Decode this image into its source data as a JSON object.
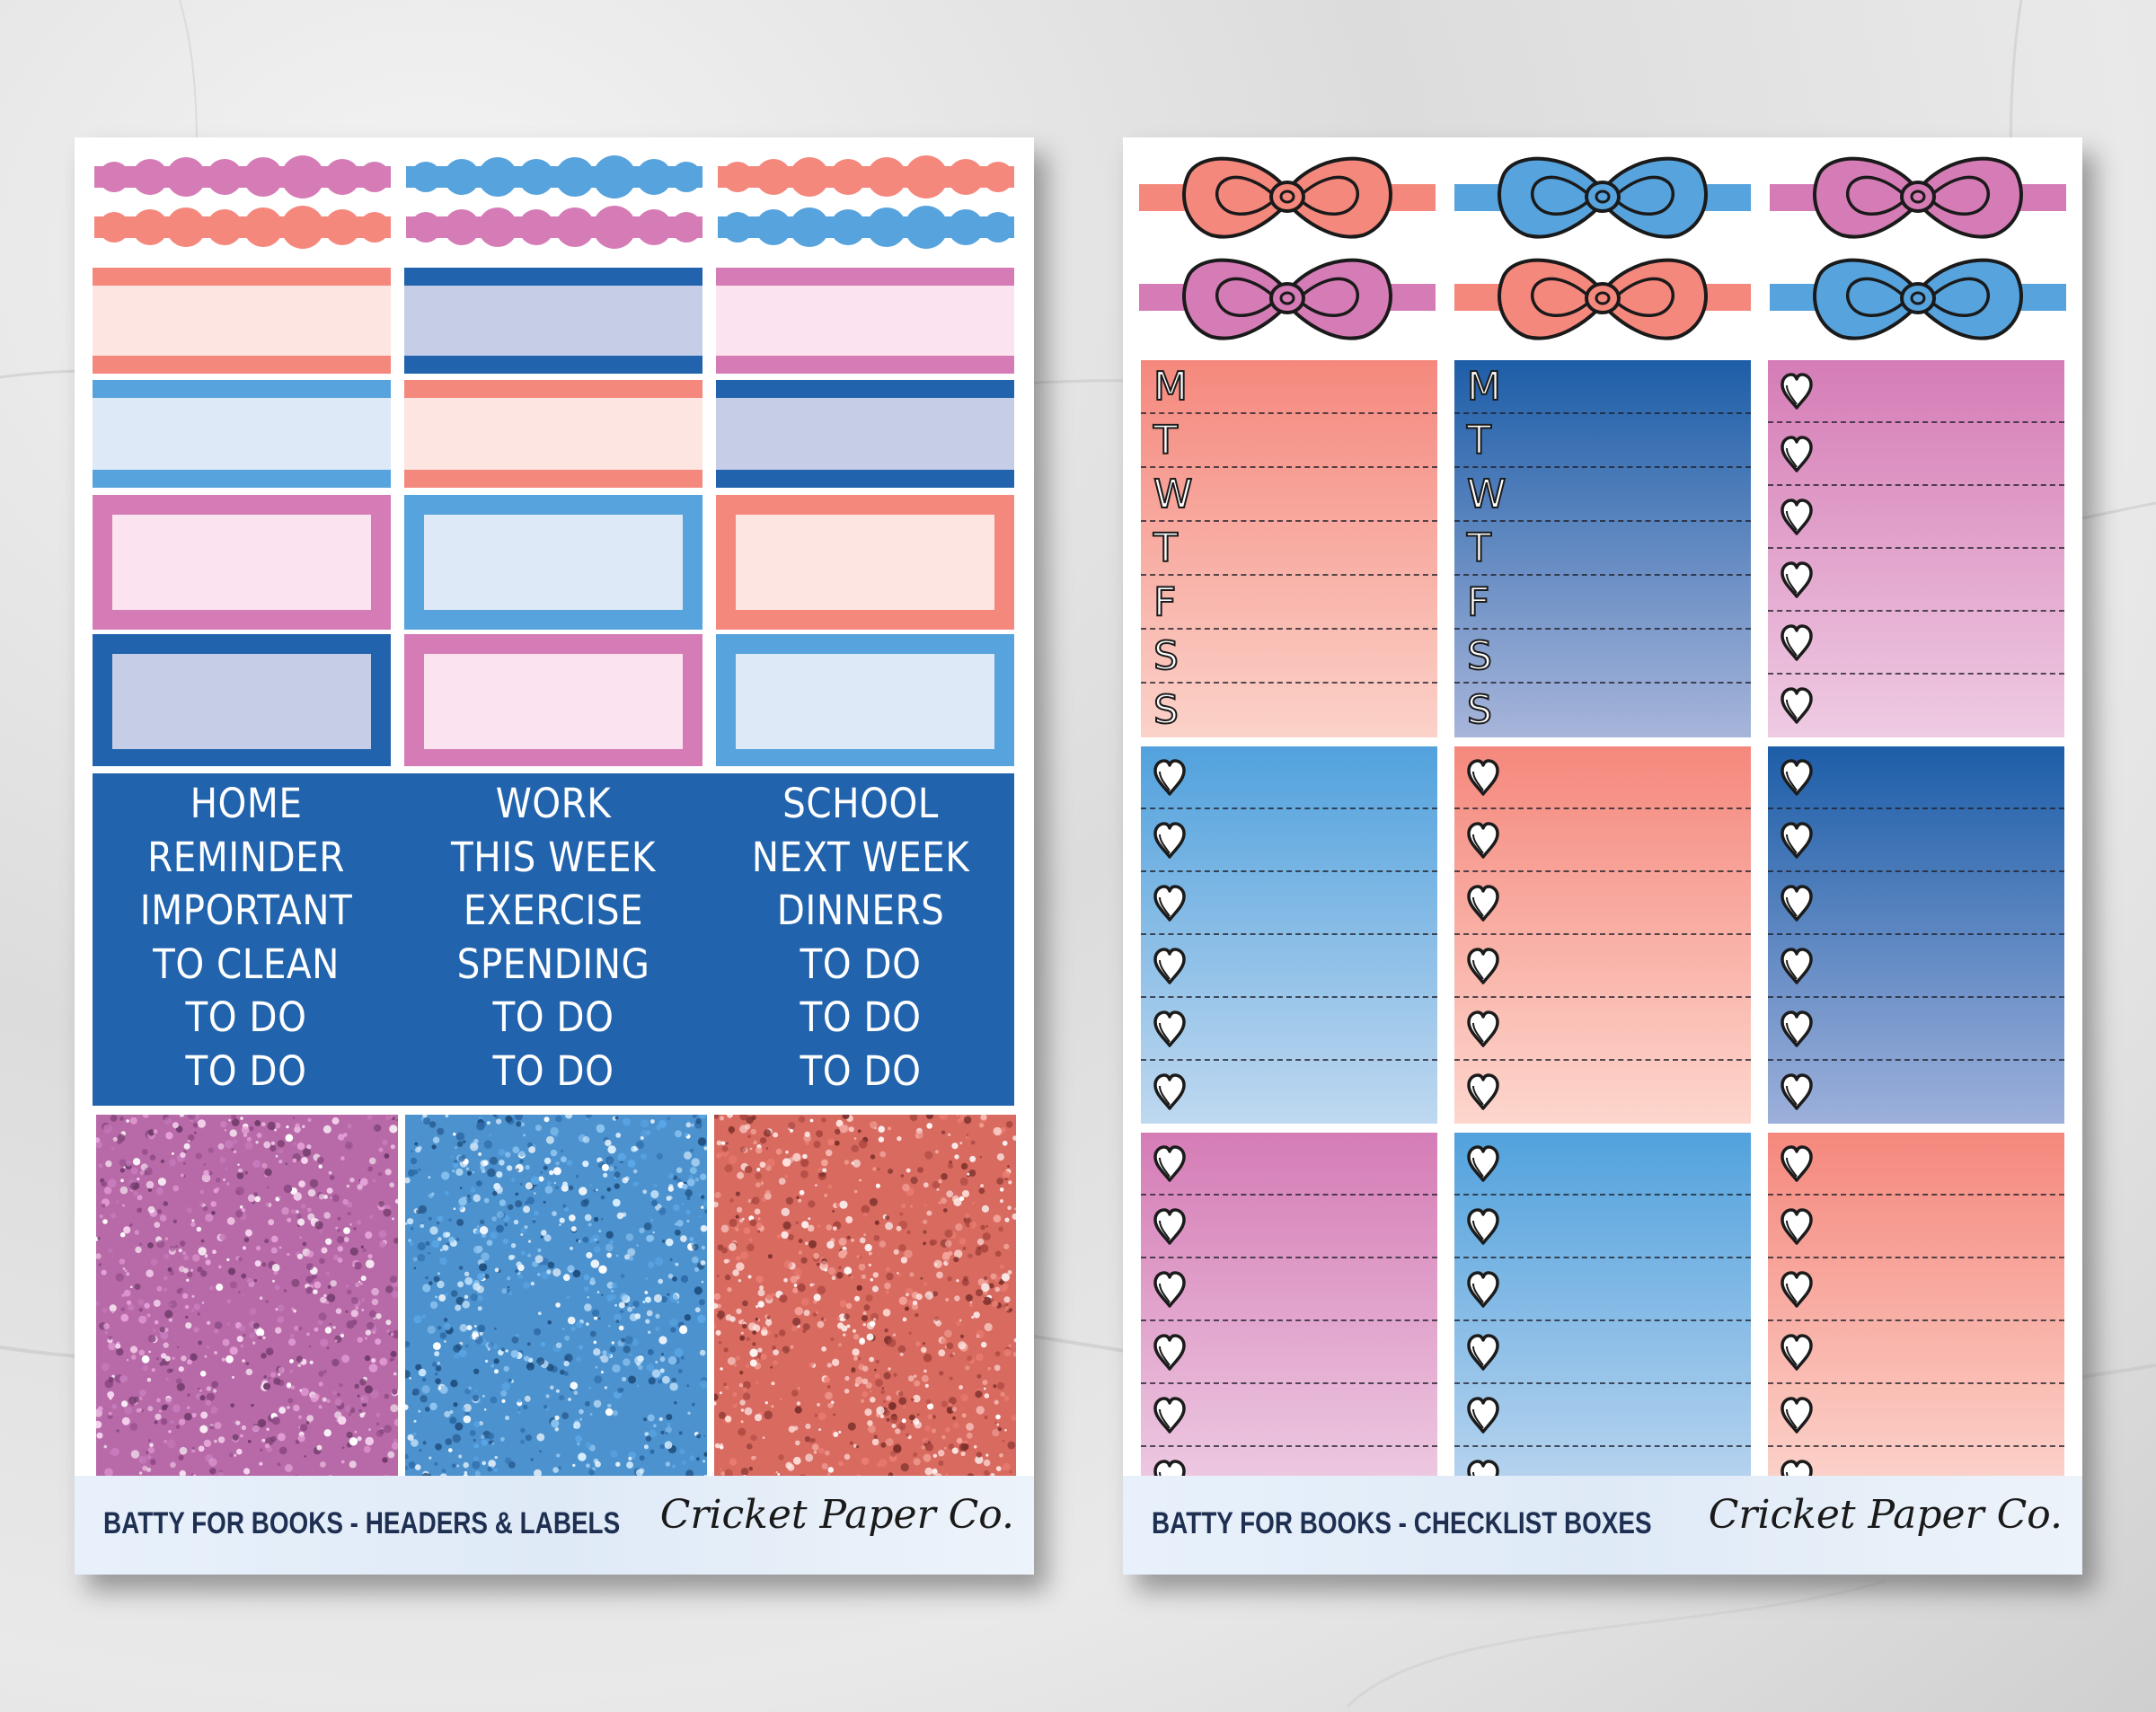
{
  "colors": {
    "pink": "#d57cb6",
    "coral": "#f5887d",
    "sky": "#57a3dd",
    "navy": "#2163ad",
    "pale_pink": "#fbe4ef",
    "pale_coral": "#fde6e1",
    "pale_sky": "#dde9f7",
    "periwinkle": "#c6cde6"
  },
  "sheet1": {
    "footer_title": "BATTY FOR BOOKS - HEADERS & LABELS",
    "brand": "Cricket Paper Co.",
    "labels": [
      [
        "HOME",
        "REMINDER",
        "IMPORTANT",
        "TO CLEAN",
        "TO DO",
        "TO DO"
      ],
      [
        "WORK",
        "THIS WEEK",
        "EXERCISE",
        "SPENDING",
        "TO DO",
        "TO DO"
      ],
      [
        "SCHOOL",
        "NEXT WEEK",
        "DINNERS",
        "TO DO",
        "TO DO",
        "TO DO"
      ]
    ]
  },
  "sheet2": {
    "footer_title": "BATTY FOR BOOKS - CHECKLIST BOXES",
    "brand": "Cricket Paper Co.",
    "weekdays": [
      "M",
      "T",
      "W",
      "T",
      "F",
      "S",
      "S"
    ]
  }
}
